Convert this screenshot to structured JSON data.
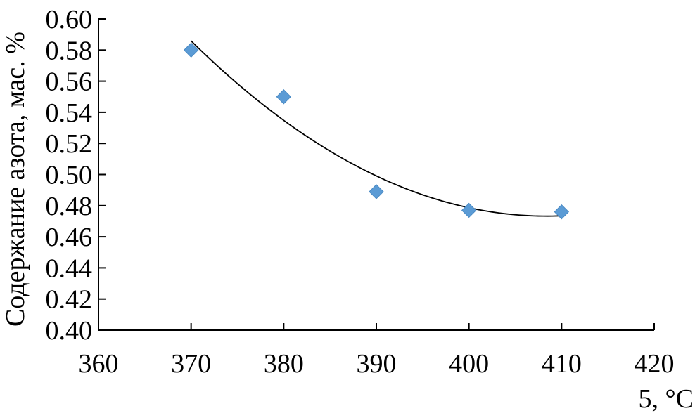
{
  "chart_data": {
    "type": "scatter",
    "title": "",
    "xlabel": "5, °C",
    "ylabel": "Содержание азота, мас. %",
    "xlim": [
      360,
      420
    ],
    "ylim": [
      0.4,
      0.6
    ],
    "x_ticks": [
      360,
      370,
      380,
      390,
      400,
      410,
      420
    ],
    "y_ticks": [
      "0.40",
      "0.42",
      "0.44",
      "0.46",
      "0.48",
      "0.50",
      "0.52",
      "0.54",
      "0.56",
      "0.58",
      "0.60"
    ],
    "series": [
      {
        "marker_color": "#5b9bd5",
        "marker": "diamond",
        "x": [
          370,
          380,
          390,
          400,
          410
        ],
        "y": [
          0.58,
          0.55,
          0.489,
          0.477,
          0.476
        ]
      }
    ],
    "trendline": {
      "type": "polynomial-2",
      "color": "#000000",
      "x_range": [
        370,
        410
      ]
    },
    "grid": false,
    "legend": "none"
  }
}
